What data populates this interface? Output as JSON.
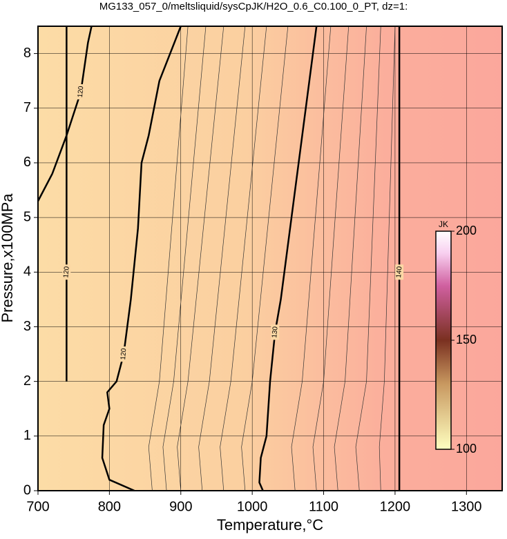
{
  "chart_data": {
    "type": "contour",
    "title": "MG133_057_0/meltsliquid/sysCpJK/H2O_0.6_C0.100_0_PT, dz=1:",
    "x_label": "Temperature,°C",
    "y_label": "Pressure,x100MPa",
    "xlim": [
      700,
      1350
    ],
    "ylim": [
      0,
      8.5
    ],
    "xticks": [
      700,
      800,
      900,
      1000,
      1100,
      1200,
      1300
    ],
    "yticks": [
      0,
      1,
      2,
      3,
      4,
      5,
      6,
      7,
      8
    ],
    "grid": true,
    "colorbar": {
      "label": "JK",
      "clim": [
        100,
        200
      ],
      "ticks": [
        100,
        150,
        200
      ]
    },
    "series": [
      {
        "name": "120",
        "x": [
          835,
          800,
          790,
          792,
          800,
          797,
          810,
          820,
          830,
          840,
          845,
          855,
          870,
          900
        ],
        "y": [
          0,
          0.2,
          0.6,
          1.2,
          1.5,
          1.8,
          2.0,
          2.5,
          3.5,
          4.8,
          6.0,
          6.5,
          7.5,
          8.5
        ]
      },
      {
        "name": "120",
        "x": [
          700,
          720,
          740,
          760,
          770,
          775
        ],
        "y": [
          5.3,
          5.8,
          6.5,
          7.3,
          8.2,
          8.5
        ]
      },
      {
        "name": "120",
        "x": [
          740,
          740,
          740
        ],
        "y": [
          2.0,
          4.0,
          8.5
        ]
      },
      {
        "name": "130",
        "x": [
          1015,
          1010,
          1012,
          1020,
          1025,
          1032,
          1040,
          1055,
          1070,
          1090
        ],
        "y": [
          0,
          0.15,
          0.6,
          1.0,
          2.0,
          2.9,
          3.5,
          5.0,
          6.5,
          8.5
        ]
      },
      {
        "name": "140",
        "x": [
          1206,
          1206,
          1206
        ],
        "y": [
          0,
          4.0,
          8.5
        ]
      }
    ],
    "minor_contours": [
      {
        "x": [
          860,
          855,
          870,
          910
        ],
        "y": [
          0,
          0.8,
          2,
          8.5
        ]
      },
      {
        "x": [
          880,
          875,
          890,
          935
        ],
        "y": [
          0,
          0.8,
          2,
          8.5
        ]
      },
      {
        "x": [
          900,
          895,
          910,
          960
        ],
        "y": [
          0,
          0.8,
          2,
          8.5
        ]
      },
      {
        "x": [
          930,
          925,
          940,
          990
        ],
        "y": [
          0,
          0.8,
          2,
          8.5
        ]
      },
      {
        "x": [
          960,
          955,
          970,
          1020
        ],
        "y": [
          0,
          0.8,
          2,
          8.5
        ]
      },
      {
        "x": [
          990,
          985,
          1000,
          1050
        ],
        "y": [
          0,
          0.8,
          2,
          8.5
        ]
      },
      {
        "x": [
          1060,
          1055,
          1070,
          1110
        ],
        "y": [
          0,
          0.8,
          2,
          8.5
        ]
      },
      {
        "x": [
          1090,
          1085,
          1100,
          1135
        ],
        "y": [
          0,
          0.8,
          2,
          8.5
        ]
      },
      {
        "x": [
          1120,
          1115,
          1130,
          1160
        ],
        "y": [
          0,
          0.8,
          2,
          8.5
        ]
      },
      {
        "x": [
          1150,
          1145,
          1160,
          1180
        ],
        "y": [
          0,
          0.8,
          2,
          8.5
        ]
      },
      {
        "x": [
          1180,
          1178,
          1185,
          1200
        ],
        "y": [
          0,
          0.8,
          2,
          8.5
        ]
      }
    ]
  }
}
